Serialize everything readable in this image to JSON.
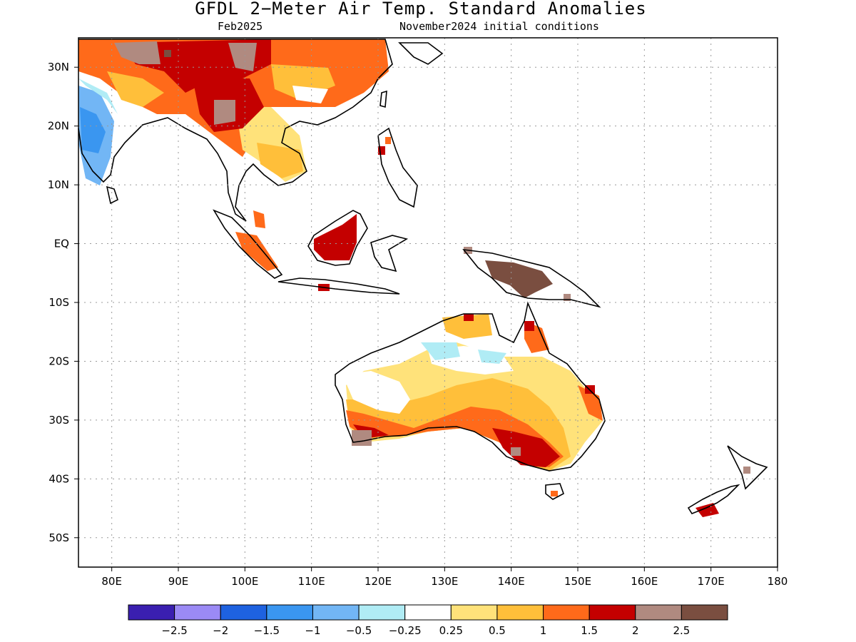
{
  "title": "GFDL 2−Meter Air Temp. Standard Anomalies",
  "subtitle_left": "Feb2025",
  "subtitle_right": "November2024 initial conditions",
  "map": {
    "lon_range": [
      75,
      180
    ],
    "lat_range": [
      -55,
      35
    ],
    "x_ticks": [
      "80E",
      "90E",
      "100E",
      "110E",
      "120E",
      "130E",
      "140E",
      "150E",
      "160E",
      "170E",
      "180"
    ],
    "y_ticks": [
      "30N",
      "20N",
      "10N",
      "EQ",
      "10S",
      "20S",
      "30S",
      "40S",
      "50S"
    ],
    "grid": "dotted"
  },
  "legend": {
    "colors": [
      "#3a1fb0",
      "#9b8af5",
      "#1e62e0",
      "#3a96f0",
      "#72b6f5",
      "#b0ecf5",
      "#ffffff",
      "#ffe27a",
      "#ffbf3a",
      "#ff6a1a",
      "#c40000",
      "#b08a80",
      "#7a4e40"
    ],
    "labels": [
      "−2.5",
      "−2",
      "−1.5",
      "−1",
      "−0.5",
      "−0.25",
      "0.25",
      "0.5",
      "1",
      "1.5",
      "2",
      "2.5"
    ]
  }
}
